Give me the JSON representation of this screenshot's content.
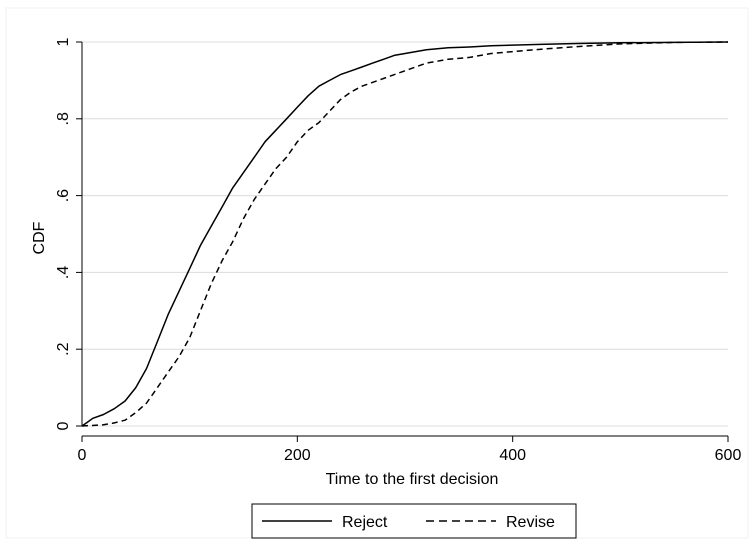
{
  "chart_data": {
    "type": "line",
    "title": "",
    "xlabel": "Time to the first decision",
    "ylabel": "CDF",
    "xlim": [
      0,
      600
    ],
    "ylim": [
      0,
      1
    ],
    "x_ticks": [
      0,
      200,
      400,
      600
    ],
    "y_ticks": [
      0,
      0.2,
      0.4,
      0.6,
      0.8,
      1
    ],
    "x_tick_labels": [
      "0",
      "200",
      "400",
      "600"
    ],
    "y_tick_labels": [
      "0",
      ".2",
      ".4",
      ".6",
      ".8",
      "1"
    ],
    "grid": "horizontal",
    "legend_position": "bottom",
    "series": [
      {
        "name": "Reject",
        "line_style": "solid",
        "color": "#000000",
        "points": [
          [
            0,
            0.0
          ],
          [
            5,
            0.01
          ],
          [
            10,
            0.02
          ],
          [
            20,
            0.03
          ],
          [
            30,
            0.045
          ],
          [
            40,
            0.065
          ],
          [
            50,
            0.1
          ],
          [
            60,
            0.15
          ],
          [
            70,
            0.22
          ],
          [
            80,
            0.29
          ],
          [
            90,
            0.35
          ],
          [
            100,
            0.41
          ],
          [
            110,
            0.47
          ],
          [
            120,
            0.52
          ],
          [
            130,
            0.57
          ],
          [
            140,
            0.62
          ],
          [
            150,
            0.66
          ],
          [
            160,
            0.7
          ],
          [
            170,
            0.74
          ],
          [
            180,
            0.77
          ],
          [
            190,
            0.8
          ],
          [
            200,
            0.83
          ],
          [
            210,
            0.86
          ],
          [
            220,
            0.885
          ],
          [
            230,
            0.9
          ],
          [
            240,
            0.915
          ],
          [
            250,
            0.925
          ],
          [
            260,
            0.935
          ],
          [
            270,
            0.945
          ],
          [
            280,
            0.955
          ],
          [
            290,
            0.965
          ],
          [
            300,
            0.97
          ],
          [
            320,
            0.98
          ],
          [
            340,
            0.985
          ],
          [
            360,
            0.987
          ],
          [
            380,
            0.99
          ],
          [
            400,
            0.992
          ],
          [
            430,
            0.994
          ],
          [
            460,
            0.996
          ],
          [
            500,
            0.998
          ],
          [
            550,
            0.999
          ],
          [
            600,
            1.0
          ]
        ]
      },
      {
        "name": "Revise",
        "line_style": "dashed",
        "color": "#000000",
        "points": [
          [
            0,
            0.0
          ],
          [
            20,
            0.003
          ],
          [
            30,
            0.008
          ],
          [
            40,
            0.015
          ],
          [
            50,
            0.035
          ],
          [
            60,
            0.06
          ],
          [
            70,
            0.1
          ],
          [
            80,
            0.14
          ],
          [
            90,
            0.18
          ],
          [
            100,
            0.23
          ],
          [
            110,
            0.3
          ],
          [
            120,
            0.37
          ],
          [
            130,
            0.43
          ],
          [
            140,
            0.48
          ],
          [
            150,
            0.54
          ],
          [
            160,
            0.59
          ],
          [
            170,
            0.63
          ],
          [
            180,
            0.67
          ],
          [
            190,
            0.7
          ],
          [
            200,
            0.74
          ],
          [
            210,
            0.77
          ],
          [
            220,
            0.79
          ],
          [
            230,
            0.82
          ],
          [
            240,
            0.85
          ],
          [
            250,
            0.87
          ],
          [
            260,
            0.885
          ],
          [
            280,
            0.905
          ],
          [
            300,
            0.925
          ],
          [
            320,
            0.945
          ],
          [
            340,
            0.955
          ],
          [
            360,
            0.96
          ],
          [
            380,
            0.97
          ],
          [
            400,
            0.975
          ],
          [
            430,
            0.982
          ],
          [
            460,
            0.988
          ],
          [
            500,
            0.995
          ],
          [
            550,
            0.999
          ],
          [
            600,
            1.0
          ]
        ]
      }
    ]
  }
}
